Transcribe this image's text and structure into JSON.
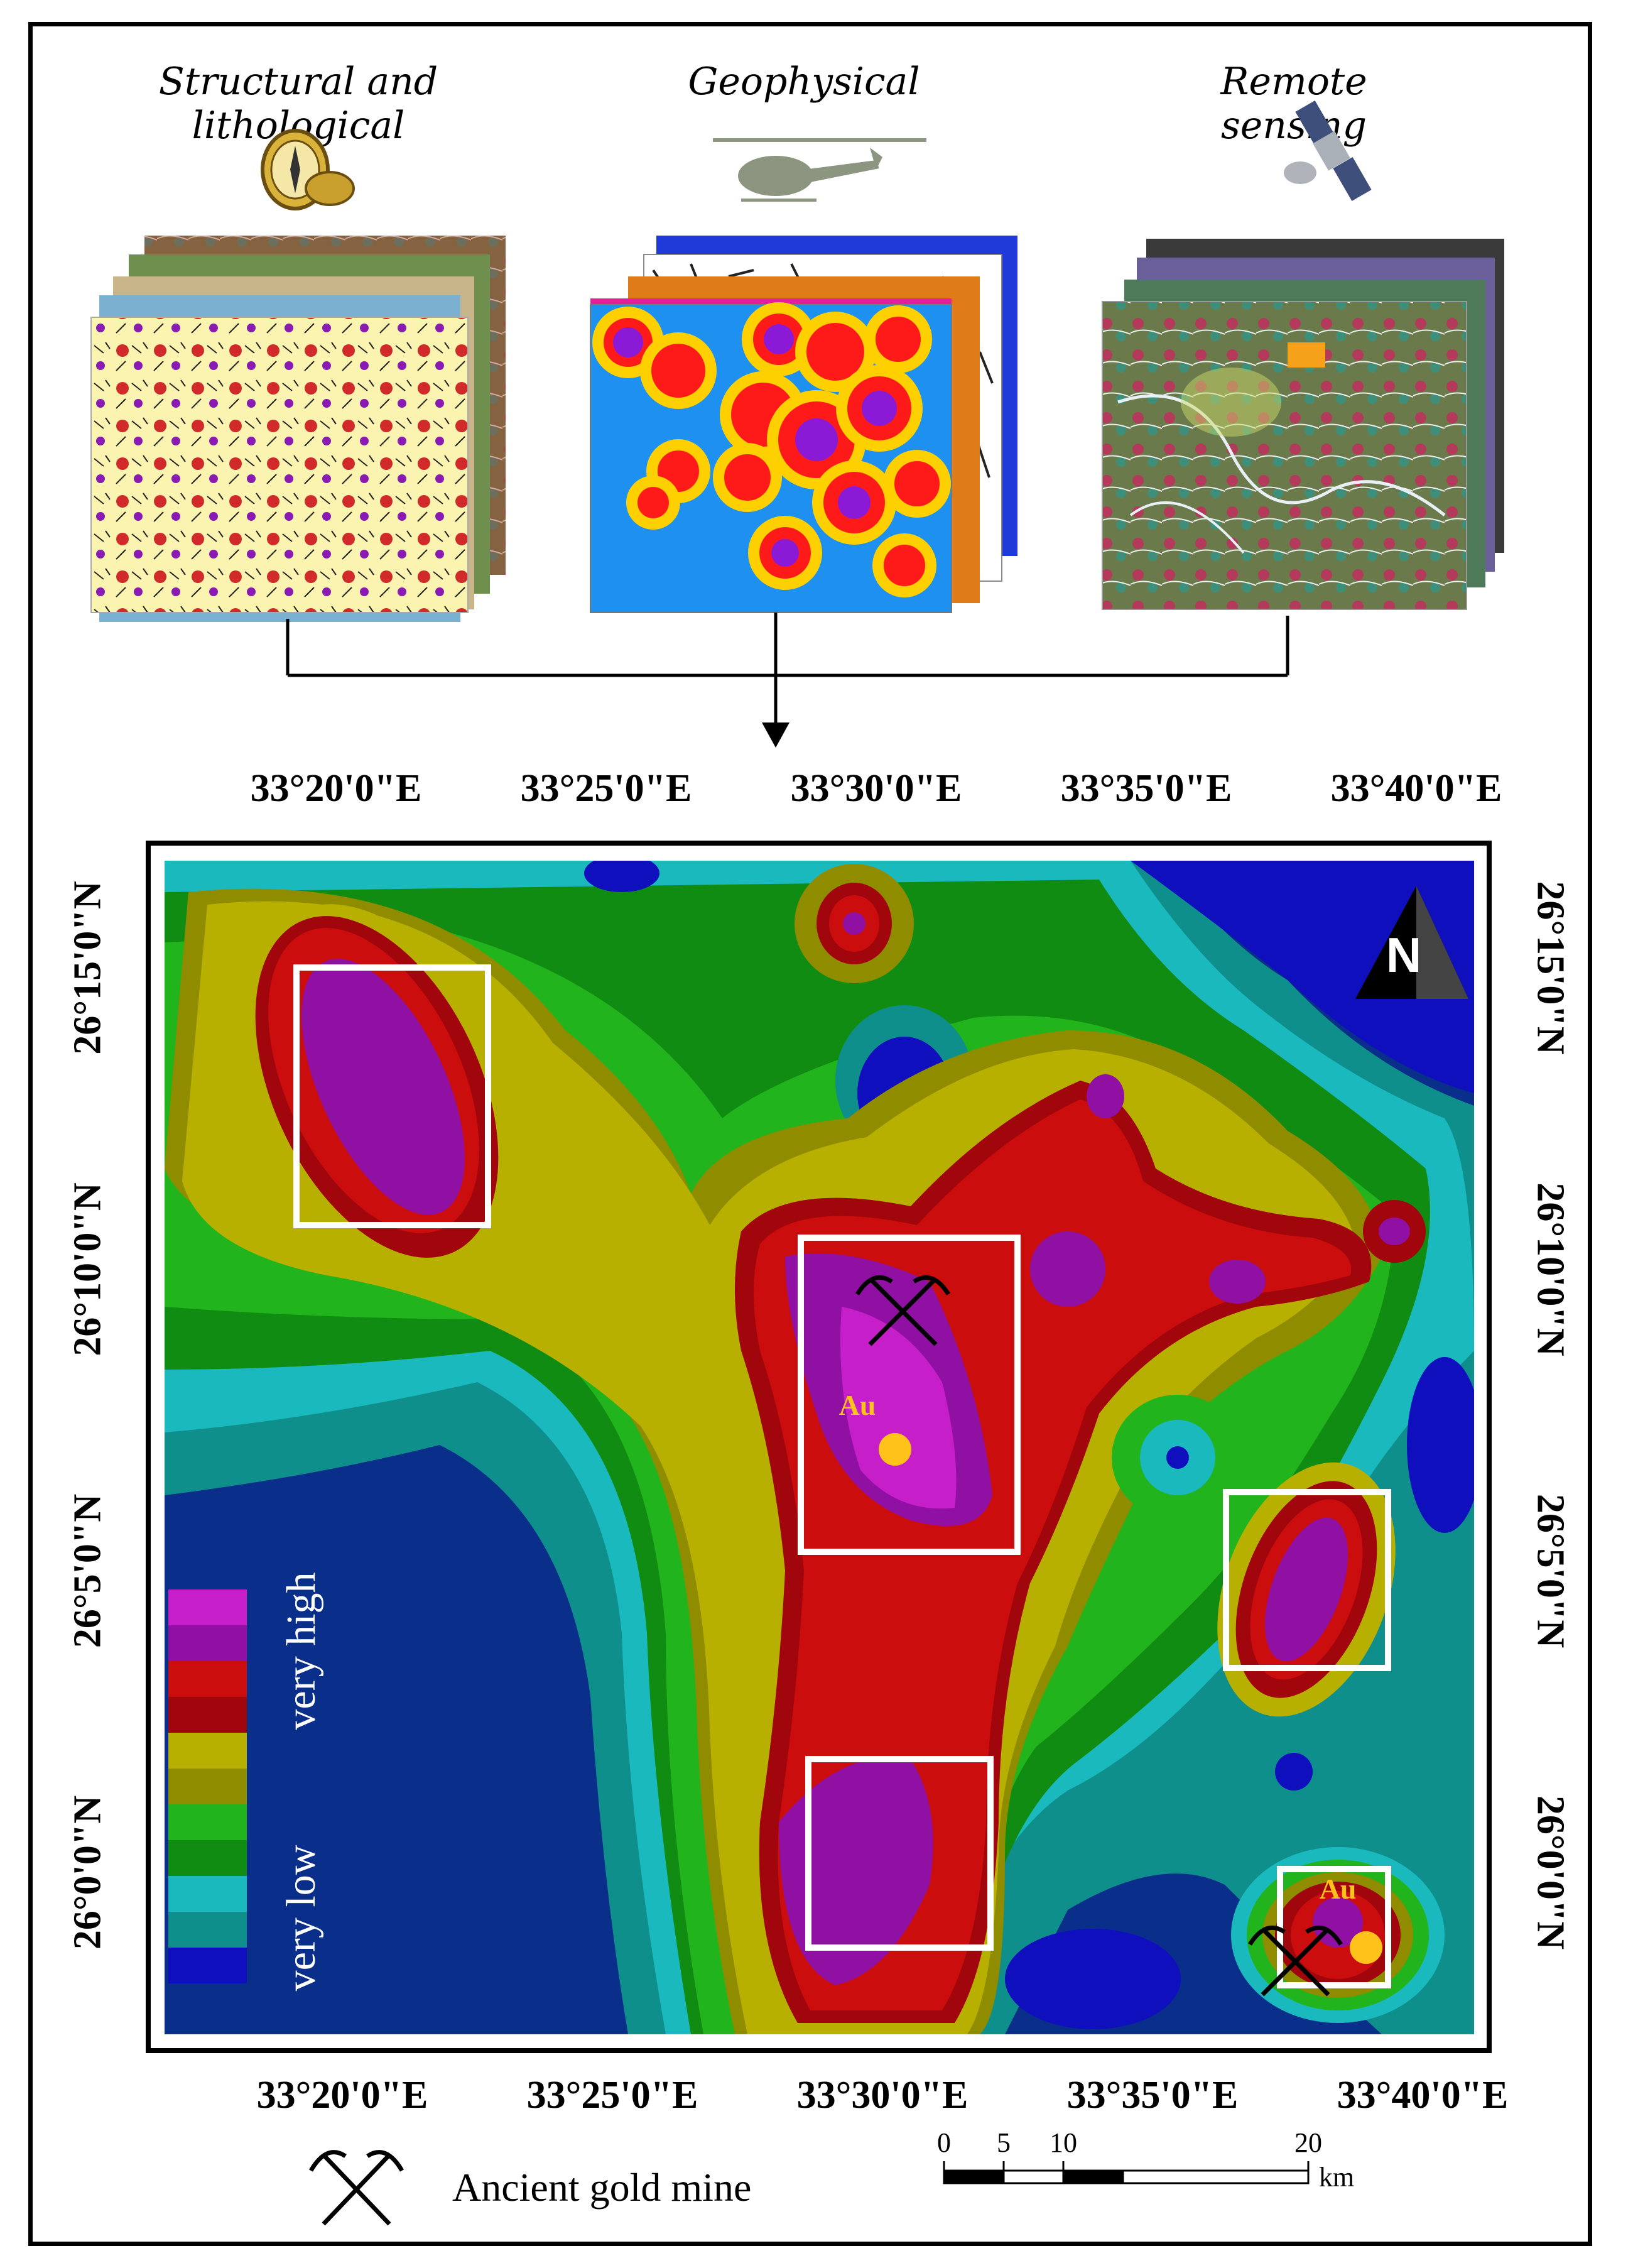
{
  "panels": {
    "structural": "Structural and lithological",
    "geophysical": "Geophysical",
    "remote": "Remote sensing"
  },
  "map": {
    "top_lon_labels": [
      "33°20'0\"E",
      "33°25'0\"E",
      "33°30'0\"E",
      "33°35'0\"E",
      "33°40'0\"E"
    ],
    "bottom_lon_labels": [
      "33°20'0\"E",
      "33°25'0\"E",
      "33°30'0\"E",
      "33°35'0\"E",
      "33°40'0\"E"
    ],
    "lat_labels": [
      "26°15'0\"N",
      "26°10'0\"N",
      "26°5'0\"N",
      "26°0'0\"N"
    ],
    "north_letter": "N",
    "au_label": "Au",
    "legend": {
      "high": "very high",
      "low": "very low",
      "colors": [
        "#c61ec8",
        "#8f10a2",
        "#cc0d0d",
        "#a0060c",
        "#b8b000",
        "#8f8c00",
        "#22b41c",
        "#118c12",
        "#1ab9bd",
        "#0f8f8c",
        "#0f0fbe",
        "#0a2f8a"
      ]
    }
  },
  "footer": {
    "mine_label": "Ancient gold mine",
    "scale_ticks": [
      "0",
      "5",
      "10",
      "20"
    ],
    "scale_unit": "km"
  }
}
